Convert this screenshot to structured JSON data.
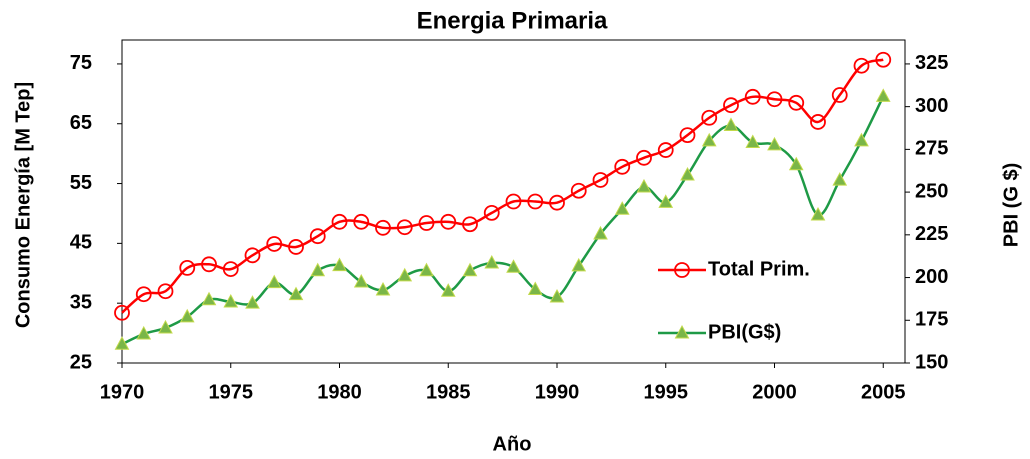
{
  "chart_data": {
    "type": "line",
    "title": "Energia Primaria",
    "x_label": "Año",
    "y_label": "Consumo Energía [M Tep]",
    "y2_label": "PBI (G $)",
    "x": [
      1970,
      1971,
      1972,
      1973,
      1974,
      1975,
      1976,
      1977,
      1978,
      1979,
      1980,
      1981,
      1982,
      1983,
      1984,
      1985,
      1986,
      1987,
      1988,
      1989,
      1990,
      1991,
      1992,
      1993,
      1994,
      1995,
      1996,
      1997,
      1998,
      1999,
      2000,
      2001,
      2002,
      2003,
      2004,
      2005
    ],
    "xlim": [
      1970,
      2006
    ],
    "xticks": [
      1970,
      1975,
      1980,
      1985,
      1990,
      1995,
      2000,
      2005
    ],
    "ylim": [
      25,
      79
    ],
    "yticks": [
      25,
      35,
      45,
      55,
      65,
      75
    ],
    "y2lim": [
      150,
      339
    ],
    "y2ticks": [
      150,
      175,
      200,
      225,
      250,
      275,
      300,
      325
    ],
    "grid": false,
    "smooth": true,
    "series": [
      {
        "name": "Total Prim.",
        "color": "#ff0000",
        "marker": "circle",
        "axis": "y",
        "values": [
          33.4,
          36.5,
          37,
          40.9,
          41.5,
          40.7,
          43,
          44.9,
          44.4,
          46.2,
          48.6,
          48.6,
          47.6,
          47.7,
          48.4,
          48.6,
          48.2,
          50.1,
          52,
          52,
          51.8,
          53.8,
          55.6,
          57.8,
          59.3,
          60.6,
          63.1,
          66,
          68.1,
          69.5,
          69.1,
          68.5,
          65.3,
          69.8,
          74.7,
          75.7
        ]
      },
      {
        "name": "PBI(G$)",
        "color": "#1e9a46",
        "marker": "triangle",
        "axis": "y2",
        "values": [
          161,
          167,
          170.5,
          177,
          187,
          185.7,
          185,
          197,
          190,
          204,
          207,
          197.4,
          192.7,
          201,
          204,
          192,
          204,
          208.5,
          206,
          193,
          188.6,
          206.8,
          225.5,
          240,
          253,
          244,
          260,
          280,
          289,
          279,
          277.6,
          266,
          236.6,
          257,
          280,
          306
        ]
      }
    ]
  }
}
